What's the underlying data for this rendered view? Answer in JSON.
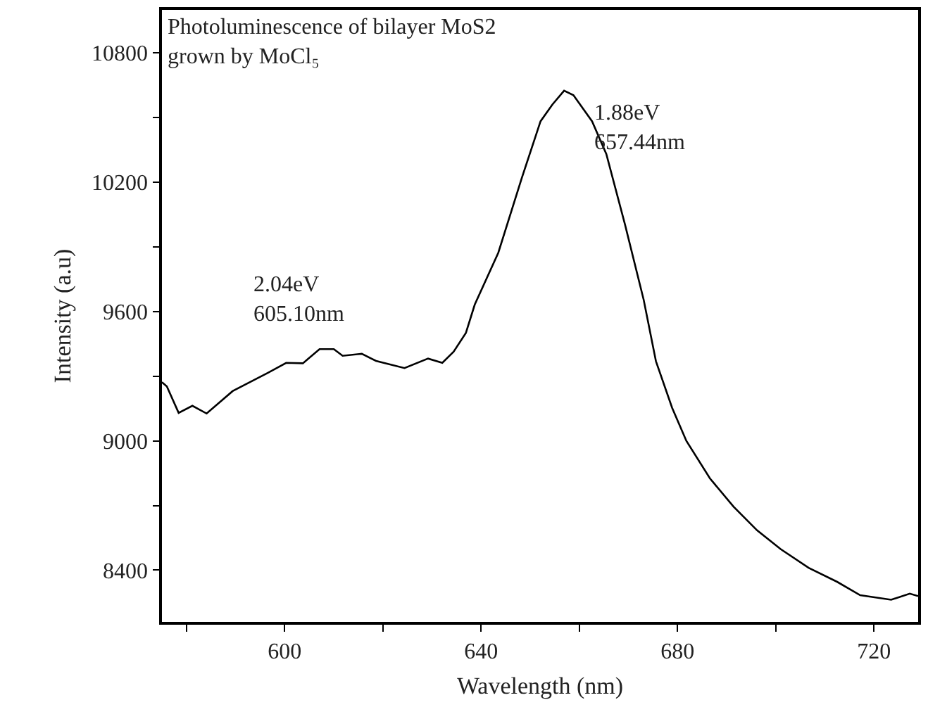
{
  "chart_data": {
    "type": "line",
    "title": "Photoluminescence of bilayer MoS2\ngrown by MoCl₅",
    "xlabel": "Wavelength (nm)",
    "ylabel": "Intensity (a.u)",
    "x": [
      575,
      576,
      578.4,
      581.2,
      584.1,
      589.4,
      596.6,
      600.3,
      603.7,
      607.1,
      610,
      611.8,
      615.7,
      618.6,
      624.4,
      629.2,
      632.1,
      634.4,
      636.9,
      638.7,
      643.5,
      648.3,
      652.1,
      654.5,
      656.9,
      658.8,
      662.6,
      665.5,
      669.3,
      673.1,
      675.6,
      678.9,
      681.8,
      686.6,
      691.4,
      696.2,
      701,
      706.7,
      712.5,
      717.2,
      723.5,
      727.3,
      729
    ],
    "series": [
      {
        "color": "#000000",
        "values": [
          9272,
          9253,
          9130,
          9163,
          9127,
          9231,
          9316,
          9362,
          9360,
          9426,
          9426,
          9395,
          9404,
          9371,
          9338,
          9382,
          9362,
          9414,
          9501,
          9632,
          9873,
          10221,
          10483,
          10560,
          10625,
          10604,
          10483,
          10331,
          10004,
          9655,
          9370,
          9153,
          9000,
          8826,
          8695,
          8585,
          8498,
          8411,
          8346,
          8284,
          8263,
          8291,
          8280
        ]
      }
    ],
    "annotations": [
      {
        "text": "2.04eV\n605.10nm",
        "x": 605.1,
        "y": 9426
      },
      {
        "text": "1.88eV\n657.44nm",
        "x": 657.44,
        "y": 10625
      }
    ],
    "xlim": [
      575,
      729
    ],
    "ylim": [
      8160,
      11000
    ],
    "xticks": [
      {
        "value": 580,
        "label": null
      },
      600,
      {
        "value": 620,
        "label": null
      },
      640,
      {
        "value": 660,
        "label": null
      },
      680,
      {
        "value": 700,
        "label": null
      },
      720
    ],
    "yticks": [
      8400,
      {
        "value": 8700,
        "label": null
      },
      9000,
      {
        "value": 9300,
        "label": null
      },
      9600,
      {
        "value": 9900,
        "label": null
      },
      10200,
      {
        "value": 10500,
        "label": null
      },
      10800
    ],
    "grid": false,
    "marker": "none",
    "line_style": "solid"
  }
}
